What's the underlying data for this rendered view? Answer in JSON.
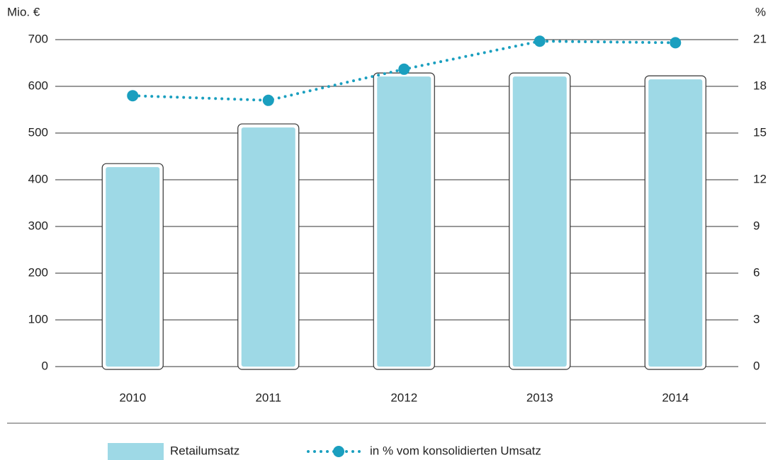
{
  "chart_data": {
    "type": "bar_line",
    "y_label": "Mio. €",
    "y2_label": "%",
    "categories": [
      "2010",
      "2011",
      "2012",
      "2013",
      "2014"
    ],
    "series": [
      {
        "name": "Retailumsatz",
        "type": "bar",
        "color": "#9ed9e6",
        "values": [
          427,
          512,
          621,
          621,
          615
        ]
      },
      {
        "name": "in % vom konsolidierten Umsatz",
        "type": "line",
        "axis": "y2",
        "color": "#1a9fbf",
        "values": [
          17.4,
          17.1,
          19.1,
          20.9,
          20.8
        ]
      }
    ],
    "ylim": [
      0,
      700
    ],
    "yticks": [
      0,
      100,
      200,
      300,
      400,
      500,
      600,
      700
    ],
    "y2lim": [
      0,
      21
    ],
    "y2ticks": [
      0,
      3,
      6,
      9,
      12,
      15,
      18,
      21
    ],
    "grid": true,
    "legend": "bottom"
  }
}
